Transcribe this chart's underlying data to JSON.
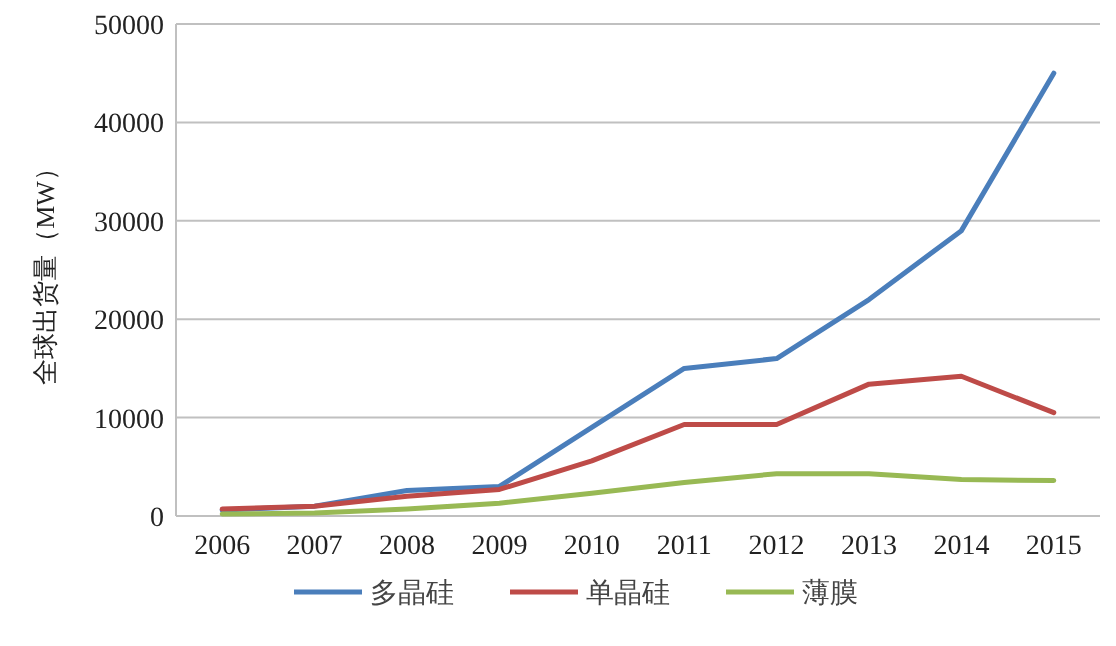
{
  "chart_data": {
    "type": "line",
    "ylabel": "全球出货量（MW）",
    "categories": [
      "2006",
      "2007",
      "2008",
      "2009",
      "2010",
      "2011",
      "2012",
      "2013",
      "2014",
      "2015"
    ],
    "series": [
      {
        "name": "多晶硅",
        "color": "#4a7ebb",
        "values": [
          600,
          1000,
          2600,
          3000,
          9000,
          15000,
          16000,
          22000,
          29000,
          45000
        ]
      },
      {
        "name": "单晶硅",
        "color": "#be4b48",
        "values": [
          700,
          1000,
          2000,
          2700,
          5600,
          9300,
          9300,
          13400,
          14200,
          10500
        ]
      },
      {
        "name": "薄膜",
        "color": "#98b954",
        "values": [
          200,
          300,
          700,
          1300,
          2300,
          3400,
          4300,
          4300,
          3700,
          3600
        ]
      }
    ],
    "ylim": [
      0,
      50000
    ],
    "yticks": [
      0,
      10000,
      20000,
      30000,
      40000,
      50000
    ],
    "grid": "y",
    "legend": "bottom",
    "marker": "none",
    "line_style": "solid"
  }
}
